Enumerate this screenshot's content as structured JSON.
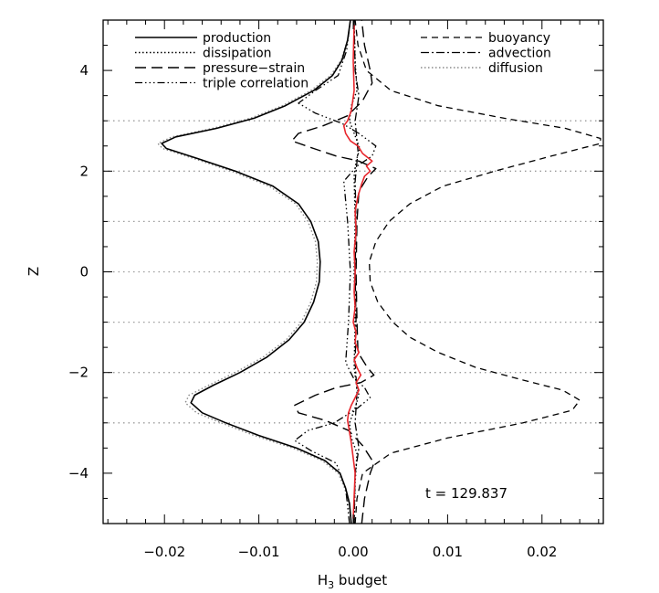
{
  "chart_data": {
    "type": "line",
    "xlabel": "H",
    "xlabel_sub": "3",
    "xlabel_rest": " budget",
    "ylabel": "Z",
    "xlim": [
      -0.0265,
      0.0265
    ],
    "ylim": [
      -5,
      5
    ],
    "xticks": [
      {
        "value": -0.02,
        "label": "−0.02"
      },
      {
        "value": -0.01,
        "label": "−0.01"
      },
      {
        "value": 0.0,
        "label": "0.00"
      },
      {
        "value": 0.01,
        "label": "0.01"
      },
      {
        "value": 0.02,
        "label": "0.02"
      }
    ],
    "yticks": [
      {
        "value": -4,
        "label": "−4"
      },
      {
        "value": -2,
        "label": "−2"
      },
      {
        "value": 0,
        "label": "0"
      },
      {
        "value": 2,
        "label": "2"
      },
      {
        "value": 4,
        "label": "4"
      }
    ],
    "reference_lines_z": [
      -3,
      -2,
      -1,
      0,
      1,
      2,
      3
    ],
    "annotation": "t = 129.837",
    "legend_left": [
      "production",
      "dissipation",
      "pressure−strain",
      "triple correlation"
    ],
    "legend_right": [
      "buoyancy",
      "advection",
      "diffusion"
    ],
    "series": [
      {
        "name": "production",
        "style": "solid",
        "color": "#000000",
        "points": [
          [
            -0.0002,
            -5
          ],
          [
            -0.0004,
            -4.6
          ],
          [
            -0.0008,
            -4.3
          ],
          [
            -0.0014,
            -4
          ],
          [
            -0.003,
            -3.75
          ],
          [
            -0.006,
            -3.5
          ],
          [
            -0.01,
            -3.25
          ],
          [
            -0.0135,
            -3.0
          ],
          [
            -0.016,
            -2.8
          ],
          [
            -0.0172,
            -2.6
          ],
          [
            -0.0168,
            -2.45
          ],
          [
            -0.0148,
            -2.25
          ],
          [
            -0.012,
            -2.0
          ],
          [
            -0.0092,
            -1.7
          ],
          [
            -0.0068,
            -1.35
          ],
          [
            -0.0052,
            -1.0
          ],
          [
            -0.0042,
            -0.6
          ],
          [
            -0.0036,
            -0.2
          ],
          [
            -0.0035,
            0.2
          ],
          [
            -0.0037,
            0.6
          ],
          [
            -0.0045,
            1.0
          ],
          [
            -0.0058,
            1.35
          ],
          [
            -0.0085,
            1.7
          ],
          [
            -0.0125,
            2.0
          ],
          [
            -0.0165,
            2.25
          ],
          [
            -0.0198,
            2.45
          ],
          [
            -0.0203,
            2.55
          ],
          [
            -0.0188,
            2.68
          ],
          [
            -0.0145,
            2.85
          ],
          [
            -0.0105,
            3.05
          ],
          [
            -0.0072,
            3.3
          ],
          [
            -0.0042,
            3.6
          ],
          [
            -0.0022,
            3.9
          ],
          [
            -0.0012,
            4.2
          ],
          [
            -0.0006,
            4.6
          ],
          [
            -0.0003,
            5.0
          ]
        ]
      },
      {
        "name": "dissipation",
        "style": "dotted",
        "color": "#000000",
        "points": [
          [
            0.0001,
            -5
          ],
          [
            0.0002,
            -4.2
          ],
          [
            0.0004,
            -3.6
          ],
          [
            -0.0002,
            -3.3
          ],
          [
            -0.0004,
            -3.0
          ],
          [
            0.0002,
            -2.7
          ],
          [
            0.0006,
            -2.45
          ],
          [
            0.0003,
            -2.2
          ],
          [
            0.0001,
            -1.9
          ],
          [
            0.0002,
            -1.0
          ],
          [
            0.0001,
            0
          ],
          [
            0.0002,
            1.0
          ],
          [
            0.0001,
            1.9
          ],
          [
            0.0003,
            2.2
          ],
          [
            0.0007,
            2.45
          ],
          [
            0.0002,
            2.7
          ],
          [
            -0.0004,
            3.0
          ],
          [
            -0.0002,
            3.3
          ],
          [
            0.0004,
            3.6
          ],
          [
            0.0002,
            4.2
          ],
          [
            0.0001,
            5
          ]
        ]
      },
      {
        "name": "pressure−strain",
        "style": "dashed",
        "color": "#000000",
        "points": [
          [
            0.0009,
            -5
          ],
          [
            0.0012,
            -4.5
          ],
          [
            0.0018,
            -4.0
          ],
          [
            0.0022,
            -3.8
          ],
          [
            0.001,
            -3.45
          ],
          [
            -0.0005,
            -3.15
          ],
          [
            -0.003,
            -2.95
          ],
          [
            -0.0058,
            -2.8
          ],
          [
            -0.0062,
            -2.65
          ],
          [
            -0.004,
            -2.45
          ],
          [
            -0.0018,
            -2.3
          ],
          [
            0.0008,
            -2.2
          ],
          [
            0.0022,
            -2.05
          ],
          [
            0.0015,
            -1.9
          ],
          [
            0.0005,
            -1.6
          ],
          [
            0.0004,
            -1.0
          ],
          [
            0.0003,
            0
          ],
          [
            0.0004,
            1.0
          ],
          [
            0.0006,
            1.6
          ],
          [
            0.0016,
            1.9
          ],
          [
            0.0024,
            2.05
          ],
          [
            0.0006,
            2.2
          ],
          [
            -0.0018,
            2.3
          ],
          [
            -0.0042,
            2.45
          ],
          [
            -0.0065,
            2.6
          ],
          [
            -0.0058,
            2.75
          ],
          [
            -0.0032,
            2.9
          ],
          [
            -0.0006,
            3.1
          ],
          [
            0.001,
            3.4
          ],
          [
            0.002,
            3.75
          ],
          [
            0.0018,
            4.0
          ],
          [
            0.0012,
            4.5
          ],
          [
            0.0009,
            5.0
          ]
        ]
      },
      {
        "name": "triple correlation",
        "style": "dashdotdot",
        "color": "#000000",
        "points": [
          [
            -0.0004,
            -5
          ],
          [
            -0.0008,
            -4.3
          ],
          [
            -0.0018,
            -3.8
          ],
          [
            -0.0045,
            -3.55
          ],
          [
            -0.0062,
            -3.35
          ],
          [
            -0.0048,
            -3.15
          ],
          [
            -0.002,
            -3.0
          ],
          [
            0.0005,
            -2.7
          ],
          [
            0.0018,
            -2.5
          ],
          [
            0.0012,
            -2.3
          ],
          [
            0.0,
            -2.1
          ],
          [
            -0.0008,
            -1.8
          ],
          [
            -0.0005,
            -1.0
          ],
          [
            -0.0003,
            0
          ],
          [
            -0.0006,
            1.0
          ],
          [
            -0.001,
            1.8
          ],
          [
            0.0004,
            2.1
          ],
          [
            0.002,
            2.3
          ],
          [
            0.0024,
            2.5
          ],
          [
            0.0006,
            2.75
          ],
          [
            -0.0012,
            2.95
          ],
          [
            -0.004,
            3.15
          ],
          [
            -0.0058,
            3.35
          ],
          [
            -0.004,
            3.6
          ],
          [
            -0.0016,
            3.9
          ],
          [
            -0.0007,
            4.4
          ],
          [
            -0.0003,
            5.0
          ]
        ]
      },
      {
        "name": "buoyancy",
        "style": "longdash",
        "color": "#000000",
        "points": [
          [
            0.0002,
            -5
          ],
          [
            0.0004,
            -4.5
          ],
          [
            0.001,
            -4.0
          ],
          [
            0.004,
            -3.6
          ],
          [
            0.01,
            -3.3
          ],
          [
            0.018,
            -3.0
          ],
          [
            0.0232,
            -2.75
          ],
          [
            0.024,
            -2.55
          ],
          [
            0.0222,
            -2.35
          ],
          [
            0.018,
            -2.15
          ],
          [
            0.013,
            -1.9
          ],
          [
            0.009,
            -1.6
          ],
          [
            0.006,
            -1.3
          ],
          [
            0.0042,
            -1.0
          ],
          [
            0.0026,
            -0.6
          ],
          [
            0.0018,
            -0.2
          ],
          [
            0.0017,
            0.2
          ],
          [
            0.0024,
            0.6
          ],
          [
            0.0038,
            1.0
          ],
          [
            0.006,
            1.35
          ],
          [
            0.0095,
            1.7
          ],
          [
            0.015,
            2.0
          ],
          [
            0.021,
            2.3
          ],
          [
            0.0262,
            2.55
          ],
          [
            0.0262,
            2.65
          ],
          [
            0.0225,
            2.85
          ],
          [
            0.016,
            3.05
          ],
          [
            0.009,
            3.3
          ],
          [
            0.004,
            3.6
          ],
          [
            0.0014,
            4.0
          ],
          [
            0.0005,
            4.5
          ],
          [
            0.0002,
            5.0
          ]
        ]
      },
      {
        "name": "advection",
        "style": "dashdot",
        "color": "#000000",
        "points": [
          [
            0.0001,
            -5
          ],
          [
            0.0002,
            -4.0
          ],
          [
            0.0006,
            -3.5
          ],
          [
            0.0002,
            -3.0
          ],
          [
            0.0004,
            -2.4
          ],
          [
            0.0002,
            -1.8
          ],
          [
            0.0003,
            -1.0
          ],
          [
            0.0002,
            0
          ],
          [
            0.0003,
            1.0
          ],
          [
            0.0002,
            1.8
          ],
          [
            0.0005,
            2.4
          ],
          [
            0.0002,
            3.0
          ],
          [
            0.0006,
            3.5
          ],
          [
            0.0002,
            4.0
          ],
          [
            0.0001,
            5.0
          ]
        ]
      },
      {
        "name": "diffusion",
        "style": "dotted-gray",
        "color": "#888888",
        "points": [
          [
            -0.0002,
            -5
          ],
          [
            -0.0005,
            -4.6
          ],
          [
            -0.0009,
            -4.3
          ],
          [
            -0.0016,
            -4
          ],
          [
            -0.0033,
            -3.75
          ],
          [
            -0.0064,
            -3.5
          ],
          [
            -0.0105,
            -3.25
          ],
          [
            -0.014,
            -3.0
          ],
          [
            -0.0166,
            -2.8
          ],
          [
            -0.0178,
            -2.6
          ],
          [
            -0.0174,
            -2.45
          ],
          [
            -0.0153,
            -2.25
          ],
          [
            -0.0125,
            -2.0
          ],
          [
            -0.0096,
            -1.7
          ],
          [
            -0.0071,
            -1.35
          ],
          [
            -0.0055,
            -1.0
          ],
          [
            -0.0045,
            -0.6
          ],
          [
            -0.0039,
            -0.2
          ],
          [
            -0.0038,
            0.2
          ],
          [
            -0.004,
            0.6
          ],
          [
            -0.0048,
            1.0
          ],
          [
            -0.0061,
            1.35
          ],
          [
            -0.0089,
            1.7
          ],
          [
            -0.0129,
            2.0
          ],
          [
            -0.0169,
            2.25
          ],
          [
            -0.0202,
            2.45
          ],
          [
            -0.0207,
            2.55
          ],
          [
            -0.0192,
            2.68
          ],
          [
            -0.0149,
            2.85
          ],
          [
            -0.0109,
            3.05
          ],
          [
            -0.0075,
            3.3
          ],
          [
            -0.0045,
            3.6
          ],
          [
            -0.0024,
            3.9
          ],
          [
            -0.0013,
            4.2
          ],
          [
            -0.0006,
            4.6
          ],
          [
            -0.0003,
            5.0
          ]
        ]
      },
      {
        "name": "",
        "style": "solid-red",
        "color": "#e8262c",
        "points": [
          [
            0.0,
            -4.9
          ],
          [
            0.0002,
            -4.0
          ],
          [
            -0.0002,
            -3.4
          ],
          [
            -0.0006,
            -2.95
          ],
          [
            -0.0005,
            -2.8
          ],
          [
            -0.0002,
            -2.65
          ],
          [
            0.0002,
            -2.5
          ],
          [
            0.0006,
            -2.35
          ],
          [
            0.0003,
            -2.2
          ],
          [
            0.0008,
            -2.05
          ],
          [
            0.0004,
            -1.9
          ],
          [
            0.0001,
            -1.75
          ],
          [
            0.0006,
            -1.6
          ],
          [
            0.0002,
            -1.4
          ],
          [
            0.0003,
            -1.2
          ],
          [
            0.0,
            -1.0
          ],
          [
            0.0002,
            -0.7
          ],
          [
            0.0001,
            -0.4
          ],
          [
            0.0002,
            0.0
          ],
          [
            0.0001,
            0.4
          ],
          [
            0.0003,
            0.8
          ],
          [
            0.0002,
            1.2
          ],
          [
            0.0005,
            1.5
          ],
          [
            0.0009,
            1.75
          ],
          [
            0.0012,
            1.9
          ],
          [
            0.0018,
            2.0
          ],
          [
            0.0014,
            2.1
          ],
          [
            0.002,
            2.2
          ],
          [
            0.001,
            2.35
          ],
          [
            0.0005,
            2.5
          ],
          [
            -0.0003,
            2.6
          ],
          [
            -0.0008,
            2.75
          ],
          [
            -0.001,
            2.9
          ],
          [
            -0.0006,
            3.0
          ],
          [
            -0.0002,
            3.2
          ],
          [
            0.0001,
            3.6
          ],
          [
            0.0,
            4.2
          ],
          [
            0.0001,
            4.9
          ]
        ]
      }
    ]
  }
}
